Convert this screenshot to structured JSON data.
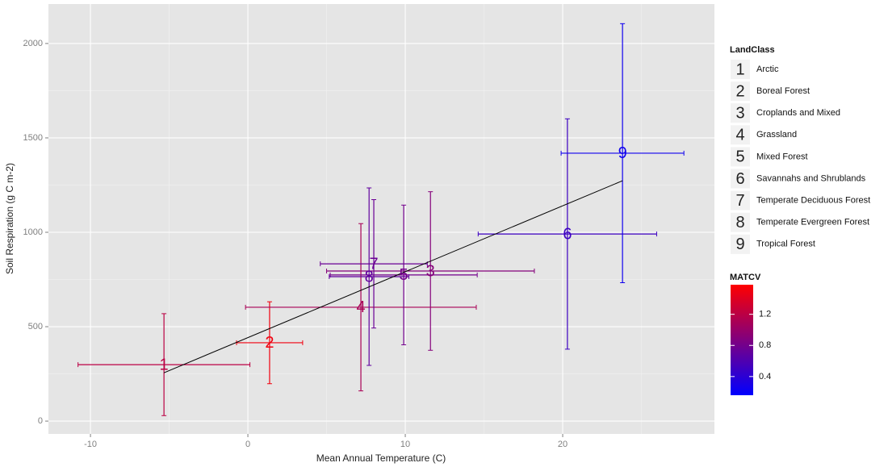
{
  "chart_data": {
    "type": "scatter",
    "x_label": "Mean Annual Temperature (C)",
    "y_label": "Soil Respiration (g C m-2)",
    "xlim": [
      -12.67,
      29.64
    ],
    "ylim": [
      -68,
      2209
    ],
    "xticks": [
      -10,
      0,
      10,
      20
    ],
    "yticks": [
      0,
      500,
      1000,
      1500,
      2000
    ],
    "grid": true,
    "legend_title": "LandClass",
    "symbols": [
      "1",
      "2",
      "3",
      "4",
      "5",
      "6",
      "7",
      "8",
      "9"
    ],
    "categories": [
      "Arctic",
      "Boreal Forest",
      "Croplands and Mixed",
      "Grassland",
      "Mixed Forest",
      "Savannahs and Shrublands",
      "Temperate Deciduous Forest",
      "Temperate Evergreen Forest",
      "Tropical Forest"
    ],
    "x": [
      -5.33,
      1.38,
      11.6,
      7.18,
      9.9,
      20.3,
      8.0,
      7.7,
      23.8
    ],
    "xerr": [
      5.46,
      2.1,
      6.6,
      7.33,
      4.67,
      5.67,
      3.4,
      2.53,
      3.9
    ],
    "values": [
      299,
      415,
      795,
      603,
      774,
      991,
      833,
      765,
      1419
    ],
    "yerr": [
      270,
      217,
      420,
      443,
      370,
      610,
      340,
      470,
      686
    ],
    "matcv": [
      1.2,
      1.5,
      0.9,
      1.1,
      0.8,
      0.5,
      0.75,
      0.7,
      0.25
    ],
    "trend_line": {
      "x": [
        -5.33,
        23.8
      ],
      "y": [
        256,
        1273
      ],
      "color": "#000000"
    },
    "color_scale": {
      "title": "MATCV",
      "low": "#0000ff",
      "high": "#ff0000",
      "lim": [
        0.16,
        1.58
      ],
      "ticks": [
        0.4,
        0.8,
        1.2
      ]
    }
  }
}
